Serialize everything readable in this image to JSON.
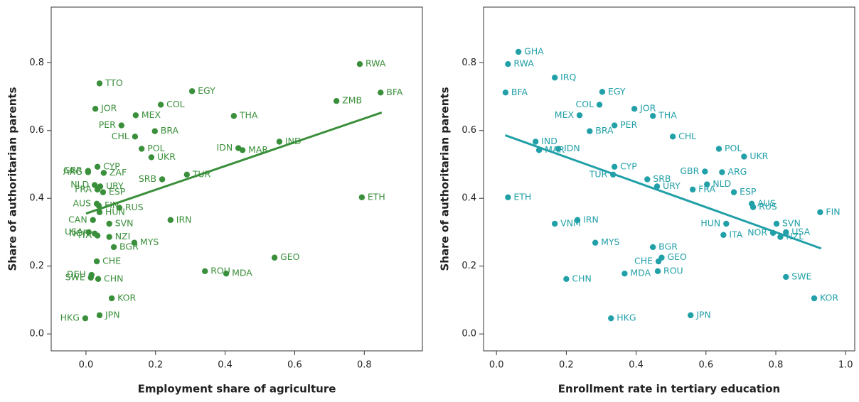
{
  "chart_data": [
    {
      "type": "scatter",
      "color": "#3a8f3a",
      "xlabel": "Employment share of agriculture",
      "ylabel": "Share of authoritarian parents",
      "xlim": [
        -0.1,
        0.967
      ],
      "ylim": [
        -0.05,
        0.964
      ],
      "xticks": [
        {
          "value": 0,
          "label": "0.0"
        },
        0.2,
        0.4,
        0.6,
        0.8
      ],
      "yticks": [
        {
          "value": 0,
          "label": "0.0"
        },
        0.2,
        0.4,
        0.6,
        0.8
      ],
      "labels": [
        "RWA",
        "BFA",
        "ZMB",
        "ETH",
        "IND",
        "MAR",
        "IDN",
        "THA",
        "EGY",
        "COL",
        "MEX",
        "BRA",
        "PER",
        "CHL",
        "POL",
        "UKR",
        "TTO",
        "JOR",
        "TUR",
        "SRB",
        "IRN",
        "GEO",
        "ROU",
        "MDA",
        "MYS",
        "BGR",
        "NZI",
        "SVN",
        "RUS",
        "CYP",
        "ZAF",
        "GBR",
        "ARG",
        "NLD",
        "URY",
        "FRA",
        "ESP",
        "AUS",
        "FIN",
        "HUN",
        "CAN",
        "USA",
        "ITA",
        "NOR",
        "CHE",
        "DEU",
        "SWE",
        "CHN",
        "KOR",
        "JPN",
        "HKG"
      ],
      "x": [
        0.787,
        0.847,
        0.72,
        0.793,
        0.556,
        0.45,
        0.438,
        0.425,
        0.305,
        0.215,
        0.143,
        0.198,
        0.102,
        0.141,
        0.16,
        0.188,
        0.039,
        0.027,
        0.29,
        0.219,
        0.243,
        0.542,
        0.342,
        0.403,
        0.139,
        0.08,
        0.067,
        0.067,
        0.096,
        0.033,
        0.051,
        0.006,
        0.006,
        0.025,
        0.041,
        0.033,
        0.049,
        0.031,
        0.037,
        0.039,
        0.02,
        0.008,
        0.033,
        0.025,
        0.031,
        0.016,
        0.014,
        0.035,
        0.074,
        0.039,
        -0.002
      ],
      "values": [
        0.796,
        0.712,
        0.687,
        0.403,
        0.567,
        0.542,
        0.548,
        0.643,
        0.716,
        0.676,
        0.645,
        0.598,
        0.615,
        0.582,
        0.546,
        0.521,
        0.739,
        0.664,
        0.47,
        0.456,
        0.336,
        0.225,
        0.185,
        0.178,
        0.269,
        0.256,
        0.286,
        0.325,
        0.372,
        0.493,
        0.475,
        0.481,
        0.477,
        0.439,
        0.435,
        0.426,
        0.418,
        0.384,
        0.378,
        0.359,
        0.336,
        0.3,
        0.29,
        0.296,
        0.214,
        0.174,
        0.166,
        0.162,
        0.105,
        0.055,
        0.046
      ],
      "trend": {
        "x": [
          0,
          0.85
        ],
        "y": [
          0.355,
          0.653
        ]
      }
    },
    {
      "type": "scatter",
      "color": "#22a0a8",
      "xlabel": "Enrollment rate in tertiary education",
      "ylabel": "Share of authoritarian parents",
      "xlim": [
        -0.037,
        1.026
      ],
      "ylim": [
        -0.05,
        0.964
      ],
      "xticks": [
        {
          "value": 0,
          "label": "0.0"
        },
        0.2,
        0.4,
        0.6,
        0.8,
        {
          "value": 1,
          "label": "1.0"
        }
      ],
      "yticks": [
        {
          "value": 0,
          "label": "0.0"
        },
        0.2,
        0.4,
        0.6,
        0.8
      ],
      "labels": [
        "GHA",
        "RWA",
        "BFA",
        "IRQ",
        "EGY",
        "COL",
        "MEX",
        "JOR",
        "THA",
        "PER",
        "BRA",
        "CHL",
        "IND",
        "MAR",
        "IDN",
        "POL",
        "UKR",
        "CYP",
        "TUR",
        "SRB",
        "URY",
        "GBR",
        "ARG",
        "NLD",
        "FRA",
        "ESP",
        "AUS",
        "RUS",
        "ETH",
        "FIN",
        "SVN",
        "HUN",
        "ITA",
        "USA",
        "NOR",
        "NZL",
        "VNM",
        "IRN",
        "MYS",
        "BGR",
        "GEO",
        "CHE",
        "ROU",
        "MDA",
        "CHN",
        "SWE",
        "KOR",
        "HKG",
        "JPN"
      ],
      "x": [
        0.063,
        0.033,
        0.026,
        0.167,
        0.303,
        0.295,
        0.238,
        0.395,
        0.448,
        0.338,
        0.267,
        0.505,
        0.112,
        0.122,
        0.177,
        0.637,
        0.709,
        0.338,
        0.334,
        0.432,
        0.46,
        0.597,
        0.646,
        0.603,
        0.562,
        0.68,
        0.731,
        0.735,
        0.033,
        0.927,
        0.802,
        0.658,
        0.65,
        0.829,
        0.792,
        0.813,
        0.167,
        0.232,
        0.283,
        0.448,
        0.473,
        0.464,
        0.462,
        0.367,
        0.2,
        0.829,
        0.91,
        0.328,
        0.556
      ],
      "values": [
        0.832,
        0.796,
        0.712,
        0.756,
        0.714,
        0.676,
        0.645,
        0.664,
        0.643,
        0.615,
        0.598,
        0.582,
        0.567,
        0.542,
        0.546,
        0.546,
        0.523,
        0.493,
        0.47,
        0.456,
        0.435,
        0.479,
        0.477,
        0.441,
        0.426,
        0.418,
        0.384,
        0.374,
        0.403,
        0.359,
        0.325,
        0.325,
        0.292,
        0.3,
        0.298,
        0.286,
        0.325,
        0.336,
        0.269,
        0.256,
        0.225,
        0.214,
        0.185,
        0.178,
        0.162,
        0.168,
        0.105,
        0.046,
        0.055
      ],
      "trend": {
        "x": [
          0.025,
          0.93
        ],
        "y": [
          0.586,
          0.252
        ]
      }
    }
  ]
}
